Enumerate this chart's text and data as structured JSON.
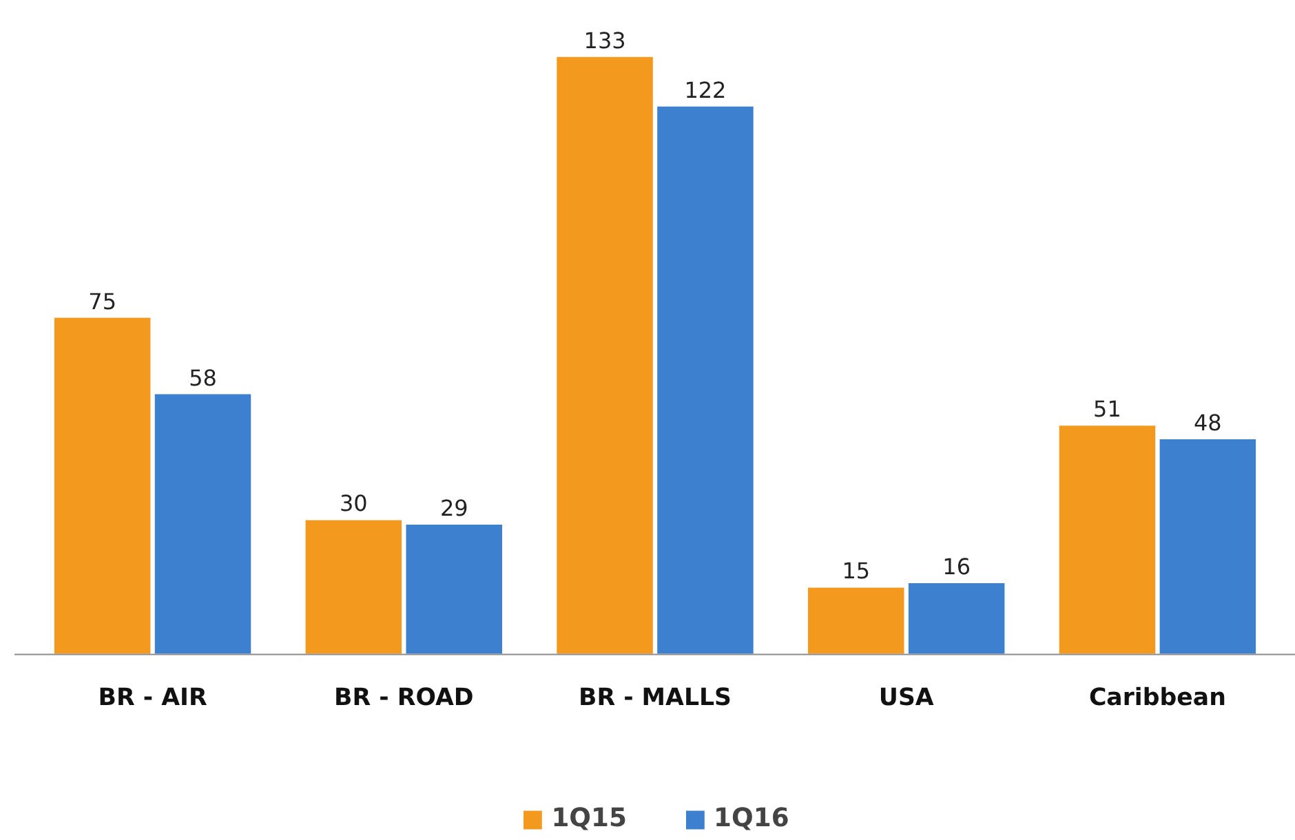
{
  "chart_data": {
    "type": "bar",
    "categories": [
      "BR - AIR",
      "BR - ROAD",
      "BR - MALLS",
      "USA",
      "Caribbean"
    ],
    "series": [
      {
        "name": "1Q15",
        "color": "#f39a1e",
        "values": [
          75,
          30,
          133,
          15,
          51
        ]
      },
      {
        "name": "1Q16",
        "color": "#3d80cf",
        "values": [
          58,
          29,
          122,
          16,
          48
        ]
      }
    ],
    "data_labels": true,
    "legend": "bottom",
    "grid": false
  }
}
